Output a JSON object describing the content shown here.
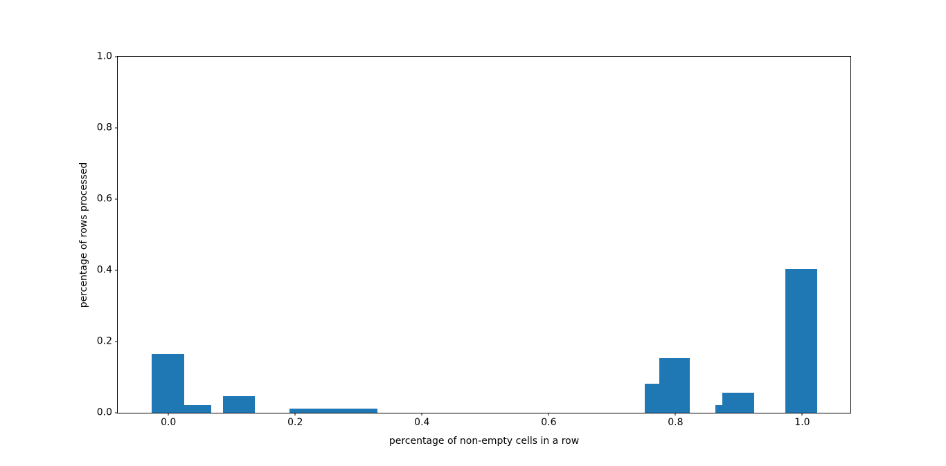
{
  "figure": {
    "background_color": "#ffffff",
    "axis_color": "#000000",
    "bar_color": "#1f77b4"
  },
  "chart_data": {
    "type": "bar",
    "title": "",
    "xlabel": "percentage of non-empty cells in a row",
    "ylabel": "percentage of rows processed",
    "xlim": [
      -0.08,
      1.076
    ],
    "ylim": [
      0,
      1.0
    ],
    "x_ticks": [
      {
        "value": 0.0,
        "label": "0.0"
      },
      {
        "value": 0.2,
        "label": "0.2"
      },
      {
        "value": 0.4,
        "label": "0.4"
      },
      {
        "value": 0.6,
        "label": "0.6"
      },
      {
        "value": 0.8,
        "label": "0.8"
      },
      {
        "value": 1.0,
        "label": "1.0"
      }
    ],
    "y_ticks": [
      {
        "value": 0.0,
        "label": "0.0"
      },
      {
        "value": 0.2,
        "label": "0.2"
      },
      {
        "value": 0.4,
        "label": "0.4"
      },
      {
        "value": 0.6,
        "label": "0.6"
      },
      {
        "value": 0.8,
        "label": "0.8"
      },
      {
        "value": 1.0,
        "label": "1.0"
      }
    ],
    "grid": false,
    "legend": false,
    "bar_color": "#1f77b4",
    "bars": [
      {
        "x_left": -0.026,
        "x_right": 0.025,
        "height": 0.166
      },
      {
        "x_left": 0.025,
        "x_right": 0.067,
        "height": 0.021
      },
      {
        "x_left": 0.086,
        "x_right": 0.136,
        "height": 0.046
      },
      {
        "x_left": 0.191,
        "x_right": 0.33,
        "height": 0.011
      },
      {
        "x_left": 0.752,
        "x_right": 0.774,
        "height": 0.081
      },
      {
        "x_left": 0.774,
        "x_right": 0.823,
        "height": 0.153
      },
      {
        "x_left": 0.863,
        "x_right": 0.874,
        "height": 0.022
      },
      {
        "x_left": 0.874,
        "x_right": 0.924,
        "height": 0.057
      },
      {
        "x_left": 0.973,
        "x_right": 1.024,
        "height": 0.404
      }
    ]
  }
}
